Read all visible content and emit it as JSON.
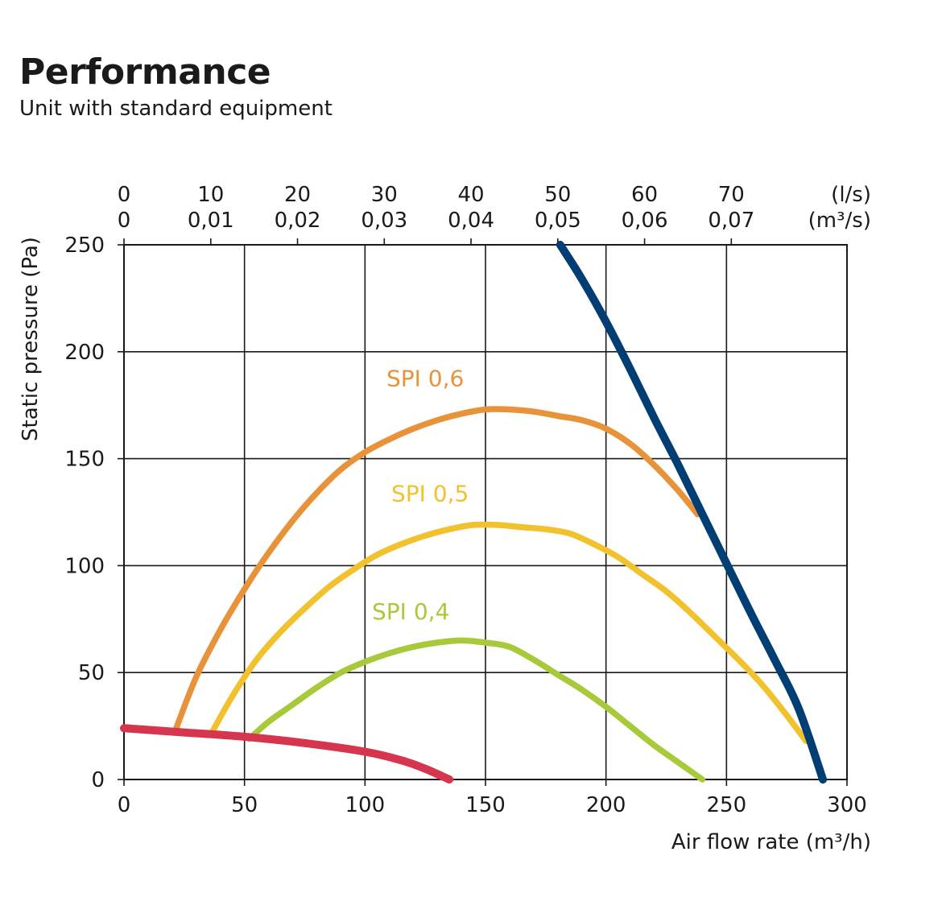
{
  "header": {
    "title": "Performance",
    "subtitle": "Unit with standard equipment"
  },
  "chart_data": {
    "type": "line",
    "title": "Performance",
    "subtitle": "Unit with standard equipment",
    "xlabel": "Air flow rate (m³/h)",
    "ylabel": "Static pressure (Pa)",
    "xlim": [
      0,
      300
    ],
    "ylim": [
      0,
      250
    ],
    "x_ticks": [
      "0",
      "50",
      "100",
      "150",
      "200",
      "250",
      "300"
    ],
    "y_ticks": [
      "0",
      "50",
      "100",
      "150",
      "200",
      "250"
    ],
    "grid": true,
    "top_axis": {
      "unit_ls": "(l/s)",
      "unit_m3s": "(m³/s)",
      "ls_ticks": [
        "0",
        "10",
        "20",
        "30",
        "40",
        "50",
        "60",
        "70"
      ],
      "m3s_ticks": [
        "0",
        "0,01",
        "0,02",
        "0,03",
        "0,04",
        "0,05",
        "0,06",
        "0,07"
      ],
      "ls_values": [
        0,
        10,
        20,
        30,
        40,
        50,
        60,
        70
      ]
    },
    "series": [
      {
        "name": "SPI 0,6",
        "color": "#E8923A",
        "x": [
          21,
          30,
          40,
          50,
          60,
          70,
          80,
          90,
          100,
          110,
          120,
          130,
          140,
          150,
          160,
          170,
          180,
          190,
          200,
          210,
          220,
          230,
          238
        ],
        "y": [
          22,
          48,
          70,
          89,
          106,
          121,
          134,
          145,
          153,
          159,
          164,
          168,
          171,
          173,
          173,
          172,
          170,
          168,
          164,
          157,
          147,
          135,
          124
        ]
      },
      {
        "name": "SPI 0,5",
        "color": "#F2C12E",
        "x": [
          36,
          45,
          55,
          65,
          75,
          85,
          95,
          105,
          115,
          125,
          135,
          145,
          155,
          165,
          175,
          185,
          195,
          205,
          215,
          225,
          235,
          245,
          255,
          265,
          275,
          283
        ],
        "y": [
          21,
          39,
          56,
          69,
          80,
          90,
          98,
          105,
          110,
          114,
          117,
          119,
          119,
          118,
          117,
          115,
          110,
          104,
          96,
          88,
          78,
          67,
          56,
          44,
          30,
          18
        ]
      },
      {
        "name": "SPI 0,4",
        "color": "#A8C93A",
        "x": [
          52,
          60,
          70,
          80,
          90,
          100,
          110,
          120,
          130,
          140,
          150,
          160,
          170,
          180,
          190,
          200,
          210,
          220,
          230,
          240
        ],
        "y": [
          19,
          27,
          35,
          43,
          50,
          55,
          59,
          62,
          64,
          65,
          64,
          62,
          56,
          49,
          42,
          34,
          25,
          16,
          8,
          0
        ]
      },
      {
        "color": "#D6364D",
        "x": [
          0,
          25,
          50,
          75,
          100,
          115,
          125,
          135
        ],
        "y": [
          24,
          22,
          20,
          17,
          13,
          9,
          5,
          0
        ]
      },
      {
        "color": "#003E74",
        "x": [
          181,
          190,
          200,
          210,
          220,
          230,
          240,
          250,
          260,
          270,
          280,
          290
        ],
        "y": [
          250,
          234,
          214,
          192,
          169,
          147,
          124,
          101,
          78,
          56,
          33,
          0
        ]
      }
    ],
    "annotations": [
      {
        "text": "SPI 0,6",
        "x": 125,
        "y": 184,
        "color": "#E8923A"
      },
      {
        "text": "SPI 0,5",
        "x": 127,
        "y": 130,
        "color": "#F2C12E"
      },
      {
        "text": "SPI 0,4",
        "x": 119,
        "y": 75,
        "color": "#A8C93A"
      }
    ]
  }
}
